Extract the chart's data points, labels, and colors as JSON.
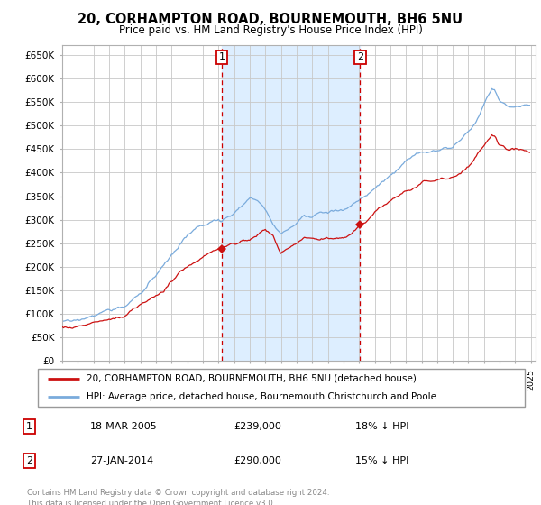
{
  "title": "20, CORHAMPTON ROAD, BOURNEMOUTH, BH6 5NU",
  "subtitle": "Price paid vs. HM Land Registry's House Price Index (HPI)",
  "ylabel_ticks": [
    "£0",
    "£50K",
    "£100K",
    "£150K",
    "£200K",
    "£250K",
    "£300K",
    "£350K",
    "£400K",
    "£450K",
    "£500K",
    "£550K",
    "£600K",
    "£650K"
  ],
  "ytick_vals": [
    0,
    50000,
    100000,
    150000,
    200000,
    250000,
    300000,
    350000,
    400000,
    450000,
    500000,
    550000,
    600000,
    650000
  ],
  "ylim": [
    0,
    670000
  ],
  "x_start_year": 1995,
  "x_end_year": 2025,
  "sale1_year": 2005.21,
  "sale1_price": 239000,
  "sale2_year": 2014.07,
  "sale2_price": 290000,
  "hpi_color": "#7aabdc",
  "price_color": "#cc1111",
  "shaded_color": "#ddeeff",
  "grid_color": "#c8c8c8",
  "dashed_line_color": "#cc0000",
  "legend_label_price": "20, CORHAMPTON ROAD, BOURNEMOUTH, BH6 5NU (detached house)",
  "legend_label_hpi": "HPI: Average price, detached house, Bournemouth Christchurch and Poole",
  "table_row1": [
    "1",
    "18-MAR-2005",
    "£239,000",
    "18% ↓ HPI"
  ],
  "table_row2": [
    "2",
    "27-JAN-2014",
    "£290,000",
    "15% ↓ HPI"
  ],
  "footer": "Contains HM Land Registry data © Crown copyright and database right 2024.\nThis data is licensed under the Open Government Licence v3.0.",
  "background_color": "#ffffff"
}
